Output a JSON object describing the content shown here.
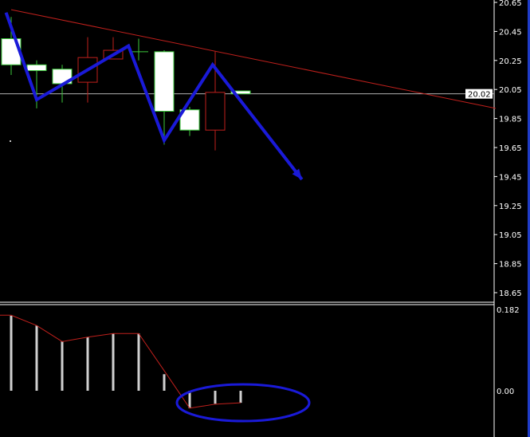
{
  "chart_data": [
    {
      "type": "candlestick",
      "price_axis_ticks": [
        "20.65",
        "20.45",
        "20.25",
        "20.05",
        "19.85",
        "19.65",
        "19.45",
        "19.25",
        "19.05",
        "18.85",
        "18.65"
      ],
      "ylim": [
        18.65,
        20.65
      ],
      "current_price": "20.02",
      "candles": [
        {
          "o": 20.22,
          "h": 20.55,
          "l": 20.15,
          "c": 20.4
        },
        {
          "o": 20.18,
          "h": 20.25,
          "l": 19.92,
          "c": 20.22
        },
        {
          "o": 20.09,
          "h": 20.22,
          "l": 19.96,
          "c": 20.19
        },
        {
          "o": 20.27,
          "h": 20.41,
          "l": 19.96,
          "c": 20.1
        },
        {
          "o": 20.32,
          "h": 20.41,
          "l": 20.26,
          "c": 20.26
        },
        {
          "o": 20.31,
          "h": 20.4,
          "l": 20.25,
          "c": 20.31
        },
        {
          "o": 19.9,
          "h": 20.32,
          "l": 19.67,
          "c": 20.31
        },
        {
          "o": 19.77,
          "h": 19.93,
          "l": 19.73,
          "c": 19.91
        },
        {
          "o": 20.03,
          "h": 20.31,
          "l": 19.63,
          "c": 19.77
        },
        {
          "o": 20.02,
          "h": 20.04,
          "l": 20.02,
          "c": 20.04
        }
      ],
      "trendline": {
        "from": {
          "bar": 0,
          "price": 20.6
        },
        "to": {
          "bar": 19,
          "price": 19.92
        },
        "color": "#c0201c"
      },
      "annotation_zigzag": {
        "color": "#1a1ad8",
        "points": [
          [
            -0.2,
            20.58
          ],
          [
            1,
            19.98
          ],
          [
            4.6,
            20.35
          ],
          [
            6,
            19.7
          ],
          [
            7.9,
            20.22
          ],
          [
            11.4,
            19.43
          ]
        ]
      }
    },
    {
      "type": "bar",
      "axis_ticks": [
        "0.182",
        "0.00"
      ],
      "ylim": [
        -0.105,
        0.19
      ],
      "values": [
        0.168,
        0.146,
        0.111,
        0.12,
        0.128,
        0.128,
        0.037,
        -0.039,
        -0.029,
        -0.027
      ],
      "signal": [
        0.169,
        0.146,
        0.11,
        0.12,
        0.128,
        0.128,
        0.045,
        -0.039,
        -0.03,
        -0.027
      ],
      "signal_color": "#c0201c",
      "annotation_ellipse_color": "#1a1ad8"
    }
  ],
  "colors": {
    "bull_body": "#ffffff",
    "bull_outline": "#3cc83c",
    "bear_outline": "#c0201c",
    "axis": "#ffffff",
    "edge": "#1f3cc8"
  }
}
